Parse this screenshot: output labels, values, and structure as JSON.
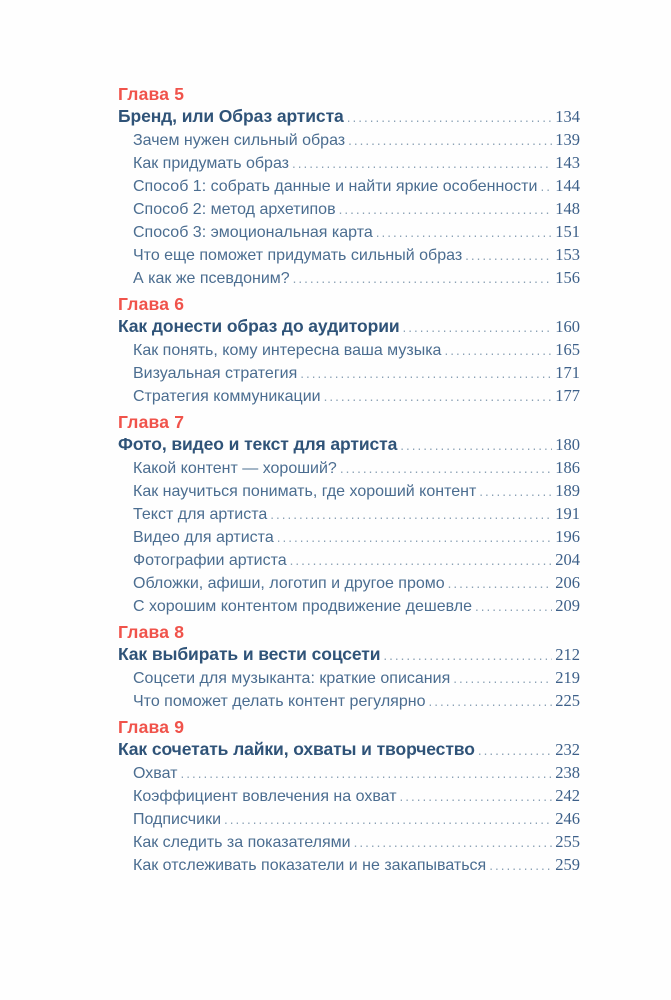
{
  "theme": {
    "bg": "#fefefe",
    "accent_red": "#f0534b",
    "title_blue": "#2f5378",
    "item_blue": "#4b6d90",
    "page_num_blue": "#3d6089",
    "leader_color": "#8ba1b5"
  },
  "toc": {
    "chapters": [
      {
        "label": "Глава 5",
        "title": "Бренд, или Образ артиста",
        "page": "134",
        "items": [
          {
            "title": "Зачем нужен сильный образ",
            "page": "139"
          },
          {
            "title": "Как придумать образ",
            "page": "143"
          },
          {
            "title": "Способ 1: собрать данные и найти яркие особенности",
            "page": "144"
          },
          {
            "title": "Способ 2: метод архетипов",
            "page": "148"
          },
          {
            "title": "Способ 3: эмоциональная карта",
            "page": "151"
          },
          {
            "title": "Что еще поможет придумать сильный образ",
            "page": "153"
          },
          {
            "title": "А как же псевдоним?",
            "page": "156"
          }
        ]
      },
      {
        "label": "Глава 6",
        "title": "Как донести образ до аудитории",
        "page": "160",
        "items": [
          {
            "title": "Как понять, кому интересна ваша музыка",
            "page": "165"
          },
          {
            "title": "Визуальная стратегия",
            "page": "171"
          },
          {
            "title": "Стратегия коммуникации",
            "page": "177"
          }
        ]
      },
      {
        "label": "Глава 7",
        "title": "Фото, видео и текст для артиста",
        "page": "180",
        "items": [
          {
            "title": "Какой контент — хороший?",
            "page": "186"
          },
          {
            "title": "Как научиться понимать, где хороший контент",
            "page": "189"
          },
          {
            "title": "Текст для артиста",
            "page": "191"
          },
          {
            "title": "Видео для артиста",
            "page": "196"
          },
          {
            "title": "Фотографии артиста",
            "page": "204"
          },
          {
            "title": "Обложки, афиши, логотип и другое промо",
            "page": "206"
          },
          {
            "title": "С хорошим контентом продвижение дешевле",
            "page": "209"
          }
        ]
      },
      {
        "label": "Глава 8",
        "title": "Как выбирать и вести соцсети",
        "page": "212",
        "items": [
          {
            "title": "Соцсети для музыканта: краткие описания",
            "page": "219"
          },
          {
            "title": "Что поможет делать контент регулярно",
            "page": "225"
          }
        ]
      },
      {
        "label": "Глава 9",
        "title": "Как сочетать лайки, охваты и творчество",
        "page": "232",
        "items": [
          {
            "title": "Охват",
            "page": "238"
          },
          {
            "title": "Коэффициент вовлечения на охват",
            "page": "242"
          },
          {
            "title": "Подписчики",
            "page": "246"
          },
          {
            "title": "Как следить за показателями",
            "page": "255"
          },
          {
            "title": "Как отслеживать показатели и не закапываться",
            "page": "259"
          }
        ]
      }
    ]
  }
}
